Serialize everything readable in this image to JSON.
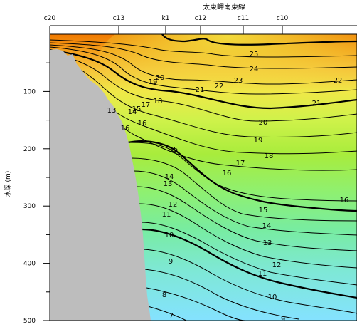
{
  "chart_data": {
    "type": "contour",
    "title": "太東岬南東線",
    "xlabel": "",
    "ylabel": "水深 (m)",
    "ylim": [
      0,
      500
    ],
    "y_ticks": [
      100,
      200,
      300,
      400,
      500
    ],
    "stations": [
      "c20",
      "c13",
      "k1",
      "c12",
      "c11",
      "c10"
    ],
    "colors": {
      "warm": "#f08000",
      "mid": "#a8ec3c",
      "cool": "#7fe6ff",
      "land": "#bdbdbd",
      "line": "#000000"
    },
    "contour_labels": [
      {
        "value": "25",
        "depth": 49
      },
      {
        "value": "24",
        "depth": 72
      },
      {
        "value": "23",
        "depth": 96
      },
      {
        "value": "22",
        "depth": 107
      },
      {
        "value": "22",
        "depth": 96
      },
      {
        "value": "21",
        "depth": 110
      },
      {
        "value": "21",
        "depth": 154
      },
      {
        "value": "20",
        "depth": 91
      },
      {
        "value": "20",
        "depth": 188
      },
      {
        "value": "19",
        "depth": 100
      },
      {
        "value": "19",
        "depth": 219
      },
      {
        "value": "18",
        "depth": 119
      },
      {
        "value": "18",
        "depth": 243
      },
      {
        "value": "17",
        "depth": 135
      },
      {
        "value": "17",
        "depth": 258
      },
      {
        "value": "16",
        "depth": 172
      },
      {
        "value": "16",
        "depth": 152
      },
      {
        "value": "16",
        "depth": 286
      },
      {
        "value": "16",
        "depth": 323
      },
      {
        "value": "15",
        "depth": 154
      },
      {
        "value": "15",
        "depth": 227
      },
      {
        "value": "15",
        "depth": 339
      },
      {
        "value": "14",
        "depth": 154
      },
      {
        "value": "14",
        "depth": 276
      },
      {
        "value": "14",
        "depth": 364
      },
      {
        "value": "13",
        "depth": 154
      },
      {
        "value": "13",
        "depth": 288
      },
      {
        "value": "13",
        "depth": 389
      },
      {
        "value": "12",
        "depth": 322
      },
      {
        "value": "12",
        "depth": 426
      },
      {
        "value": "11",
        "depth": 345
      },
      {
        "value": "11",
        "depth": 441
      },
      {
        "value": "10",
        "depth": 380
      },
      {
        "value": "10",
        "depth": 469
      },
      {
        "value": "9",
        "depth": 424
      },
      {
        "value": "9",
        "depth": 501
      },
      {
        "value": "8",
        "depth": 472
      },
      {
        "value": "7",
        "depth": 497
      }
    ]
  }
}
